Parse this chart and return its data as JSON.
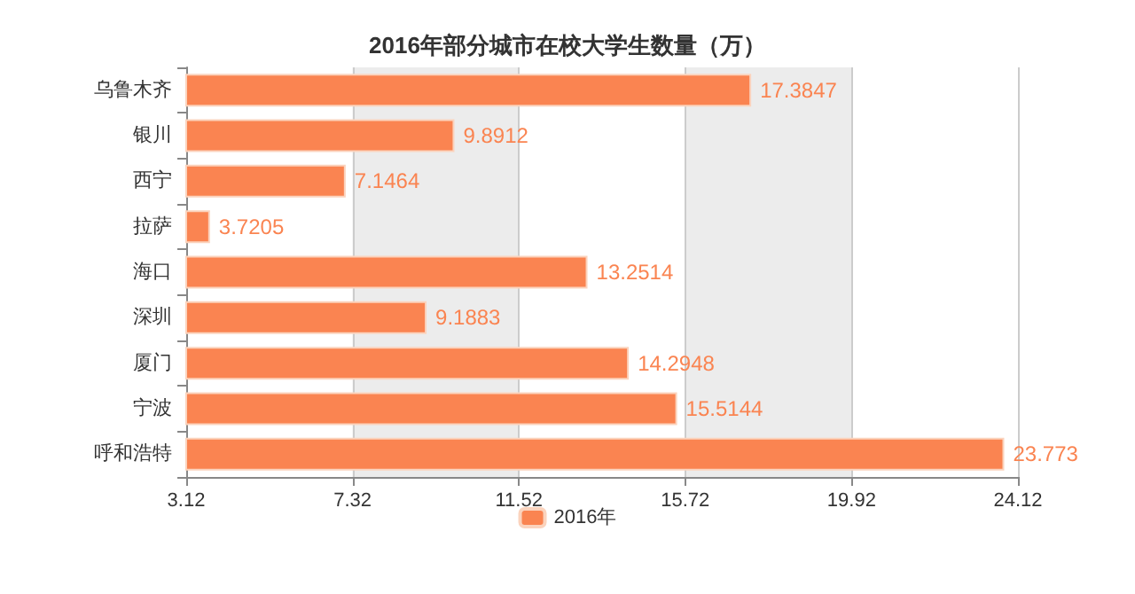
{
  "chart_data": {
    "type": "bar",
    "orientation": "horizontal",
    "title": "2016年部分城市在校大学生数量（万）",
    "categories": [
      "乌鲁木齐",
      "银川",
      "西宁",
      "拉萨",
      "海口",
      "深圳",
      "厦门",
      "宁波",
      "呼和浩特"
    ],
    "series": [
      {
        "name": "2016年",
        "color": "#fa8451",
        "values": [
          17.3847,
          9.8912,
          7.1464,
          3.7205,
          13.2514,
          9.1883,
          14.2948,
          15.5144,
          23.773
        ]
      }
    ],
    "xlim": [
      3.12,
      24.12
    ],
    "xticks": [
      3.12,
      7.32,
      11.52,
      15.72,
      19.92,
      24.12
    ],
    "data_labels": true,
    "grid": "x",
    "legend": "bottom"
  }
}
